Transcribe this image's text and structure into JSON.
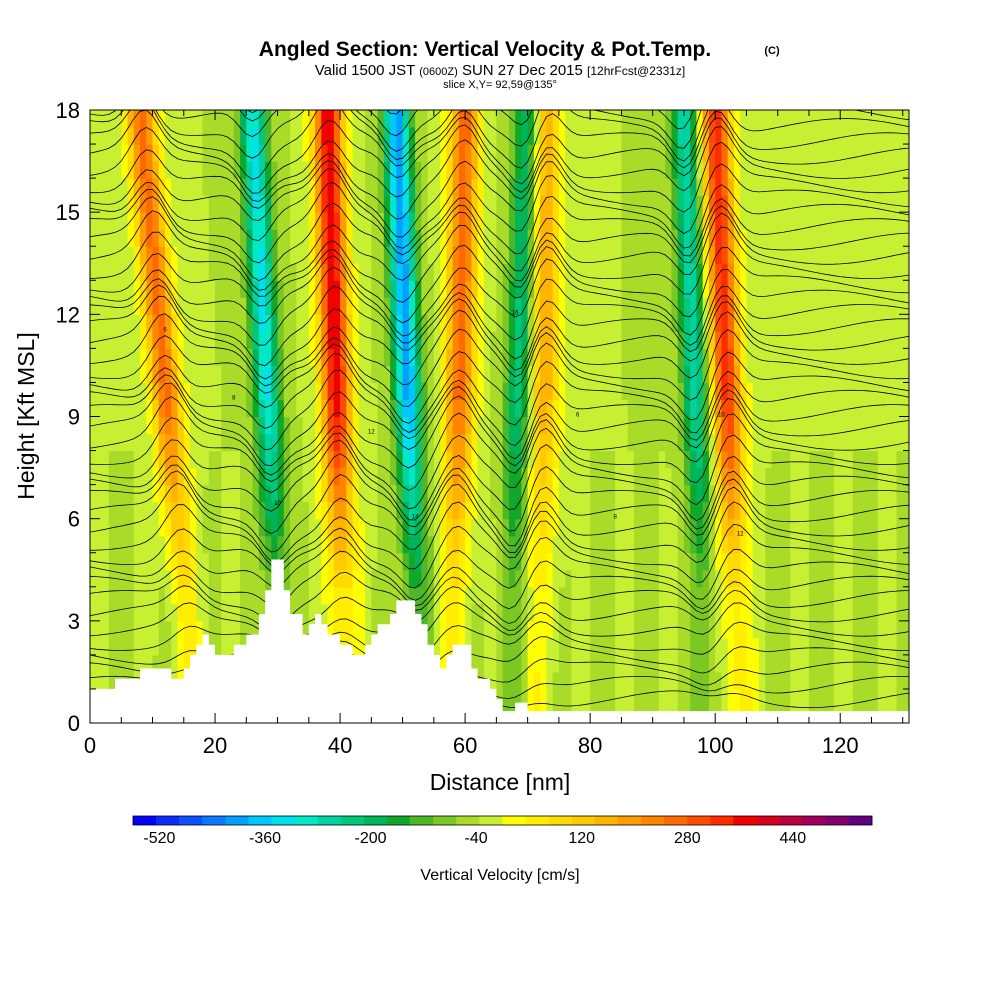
{
  "chart_data": {
    "type": "heatmap",
    "title": "Angled Section: Vertical Velocity & Pot.Temp.",
    "title_mark": "(C)",
    "subtitle": {
      "valid": "Valid 1500 JST",
      "utc": "(0600Z)",
      "date": "SUN 27 Dec 2015",
      "forecast": "[12hrFcst@2331z]"
    },
    "slice_label": "slice X,Y= 92,59@135°",
    "xlabel": "Distance [nm]",
    "ylabel": "Height [Kft MSL]",
    "xlim": [
      0,
      131
    ],
    "ylim": [
      0,
      18
    ],
    "x_ticks": [
      "0",
      "20",
      "40",
      "60",
      "80",
      "100",
      "120"
    ],
    "y_ticks": [
      "0",
      "3",
      "6",
      "9",
      "12",
      "15",
      "18"
    ],
    "colorbar": {
      "label": "Vertical Velocity [cm/s]",
      "tick_labels": [
        "-520",
        "-360",
        "-200",
        "-40",
        "120",
        "280",
        "440"
      ],
      "min": -560,
      "max": 560,
      "step": 40,
      "colors": [
        "#0000ff",
        "#0a2cff",
        "#0a50ff",
        "#0a78ff",
        "#00a0ff",
        "#00c8ff",
        "#00e0ee",
        "#00e8c8",
        "#00d2a0",
        "#00c87a",
        "#00b45a",
        "#10a82a",
        "#4cb828",
        "#7cc823",
        "#a8dc28",
        "#c8f032",
        "#ffff00",
        "#ffee00",
        "#ffdc00",
        "#ffcb00",
        "#ffb400",
        "#ff9c00",
        "#ff8400",
        "#ff6a00",
        "#ff4c00",
        "#ff2c00",
        "#f00000",
        "#d80020",
        "#bc0040",
        "#a0005c",
        "#820070",
        "#600080"
      ]
    },
    "updrafts": [
      {
        "x_top": 8,
        "x_bottom": 17,
        "peak": 340
      },
      {
        "x_top": 38,
        "x_bottom": 41,
        "peak": 480
      },
      {
        "x_top": 60,
        "x_bottom": 58,
        "peak": 340
      },
      {
        "x_top": 73,
        "x_bottom": 72,
        "peak": 240
      },
      {
        "x_top": 100,
        "x_bottom": 104,
        "peak": 420
      }
    ],
    "downdrafts": [
      {
        "x_top": 26,
        "x_bottom": 31,
        "peak": -330
      },
      {
        "x_top": 49,
        "x_bottom": 53,
        "peak": -420
      },
      {
        "x_top": 70,
        "x_bottom": 67,
        "peak": -230
      },
      {
        "x_top": 95,
        "x_bottom": 99,
        "peak": -270
      }
    ],
    "terrain": [
      [
        0,
        1.0
      ],
      [
        4,
        1.0
      ],
      [
        4,
        1.3
      ],
      [
        8,
        1.3
      ],
      [
        8,
        1.6
      ],
      [
        13,
        1.6
      ],
      [
        13,
        1.3
      ],
      [
        15,
        1.3
      ],
      [
        15,
        1.6
      ],
      [
        16,
        1.6
      ],
      [
        16,
        2.0
      ],
      [
        17,
        2.0
      ],
      [
        17,
        2.3
      ],
      [
        18,
        2.3
      ],
      [
        18,
        2.6
      ],
      [
        19,
        2.6
      ],
      [
        19,
        2.3
      ],
      [
        20,
        2.3
      ],
      [
        20,
        2.0
      ],
      [
        23,
        2.0
      ],
      [
        23,
        2.3
      ],
      [
        25,
        2.3
      ],
      [
        25,
        2.6
      ],
      [
        27,
        2.6
      ],
      [
        27,
        3.2
      ],
      [
        28,
        3.2
      ],
      [
        28,
        3.9
      ],
      [
        29,
        3.9
      ],
      [
        29,
        4.8
      ],
      [
        31,
        4.8
      ],
      [
        31,
        3.9
      ],
      [
        32,
        3.9
      ],
      [
        32,
        3.2
      ],
      [
        34,
        3.2
      ],
      [
        34,
        2.6
      ],
      [
        35,
        2.6
      ],
      [
        35,
        2.9
      ],
      [
        36,
        2.9
      ],
      [
        36,
        3.2
      ],
      [
        37,
        3.2
      ],
      [
        37,
        2.9
      ],
      [
        38,
        2.9
      ],
      [
        38,
        2.6
      ],
      [
        40,
        2.6
      ],
      [
        40,
        2.3
      ],
      [
        42,
        2.3
      ],
      [
        42,
        2.0
      ],
      [
        44,
        2.0
      ],
      [
        44,
        2.3
      ],
      [
        45,
        2.3
      ],
      [
        45,
        2.6
      ],
      [
        46,
        2.6
      ],
      [
        46,
        2.9
      ],
      [
        48,
        2.9
      ],
      [
        48,
        3.2
      ],
      [
        49,
        3.2
      ],
      [
        49,
        3.6
      ],
      [
        52,
        3.6
      ],
      [
        52,
        3.2
      ],
      [
        53,
        3.2
      ],
      [
        53,
        2.9
      ],
      [
        54,
        2.9
      ],
      [
        54,
        2.3
      ],
      [
        55,
        2.3
      ],
      [
        55,
        2.0
      ],
      [
        56,
        2.0
      ],
      [
        56,
        1.6
      ],
      [
        57,
        1.6
      ],
      [
        57,
        2.0
      ],
      [
        58,
        2.0
      ],
      [
        58,
        2.3
      ],
      [
        61,
        2.3
      ],
      [
        61,
        1.6
      ],
      [
        62,
        1.6
      ],
      [
        62,
        1.3
      ],
      [
        64,
        1.3
      ],
      [
        64,
        1.0
      ],
      [
        65,
        1.0
      ],
      [
        65,
        0.7
      ],
      [
        66,
        0.7
      ],
      [
        66,
        0.35
      ],
      [
        68,
        0.35
      ],
      [
        68,
        0.6
      ],
      [
        70,
        0.6
      ],
      [
        70,
        0.35
      ],
      [
        72,
        0.35
      ],
      [
        72,
        0.35
      ],
      [
        131,
        0.35
      ]
    ],
    "isentrope_labels": [
      "6",
      "8",
      "10",
      "12",
      "14",
      "16"
    ]
  }
}
